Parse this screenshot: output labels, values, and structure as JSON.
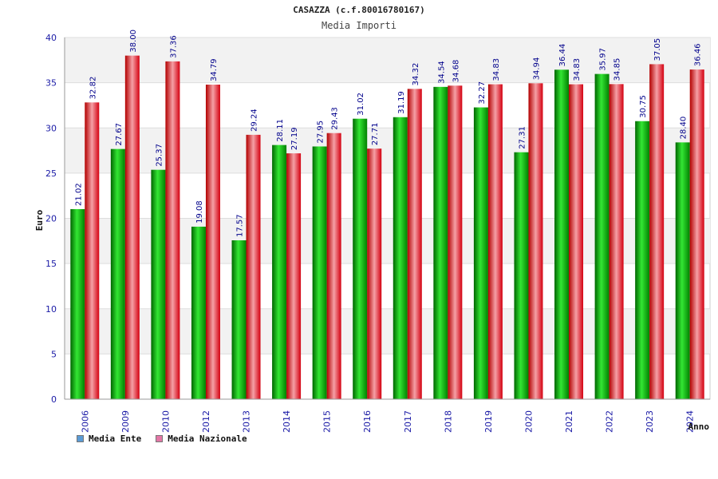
{
  "header": {
    "title": "CASAZZA (c.f.80016780167)",
    "subtitle": "Media Importi"
  },
  "legend": {
    "items": [
      {
        "label": "Media Ente",
        "color": "#5b9bd5"
      },
      {
        "label": "Media Nazionale",
        "color": "#e377a6"
      }
    ]
  },
  "chart_data": {
    "type": "bar",
    "title": "Media Importi",
    "xlabel": "Anno",
    "ylabel": "Euro",
    "ylim": [
      0,
      40
    ],
    "yticks": [
      0,
      5,
      10,
      15,
      20,
      25,
      30,
      35,
      40
    ],
    "grid": true,
    "legend_position": "bottom-left",
    "categories": [
      "2006",
      "2009",
      "2010",
      "2012",
      "2013",
      "2014",
      "2015",
      "2016",
      "2017",
      "2018",
      "2019",
      "2020",
      "2021",
      "2022",
      "2023",
      "2024"
    ],
    "series": [
      {
        "name": "Media Ente",
        "color": "#00b300",
        "values": [
          21.02,
          27.67,
          25.37,
          19.08,
          17.57,
          28.11,
          27.95,
          31.02,
          31.19,
          34.54,
          32.27,
          27.31,
          36.44,
          35.97,
          30.75,
          28.4
        ],
        "labels": [
          "21.02",
          "27.67",
          "25.37",
          "19.08",
          "17.57",
          "28.11",
          "27.95",
          "31.02",
          "31.19",
          "34.54",
          "32.27",
          "27.31",
          "36.44",
          "35.97",
          "30.75",
          "28.40"
        ]
      },
      {
        "name": "Media Nazionale",
        "color": "#e8000e",
        "values": [
          32.82,
          38.0,
          37.36,
          34.79,
          29.24,
          27.19,
          29.43,
          27.71,
          34.32,
          34.68,
          34.83,
          34.94,
          34.83,
          34.85,
          37.05,
          36.46
        ],
        "labels": [
          "32.82",
          "38.00",
          "37.36",
          "34.79",
          "29.24",
          "27.19",
          "29.43",
          "27.71",
          "34.32",
          "34.68",
          "34.83",
          "34.94",
          "34.83",
          "34.85",
          "37.05",
          "36.46"
        ]
      }
    ]
  }
}
